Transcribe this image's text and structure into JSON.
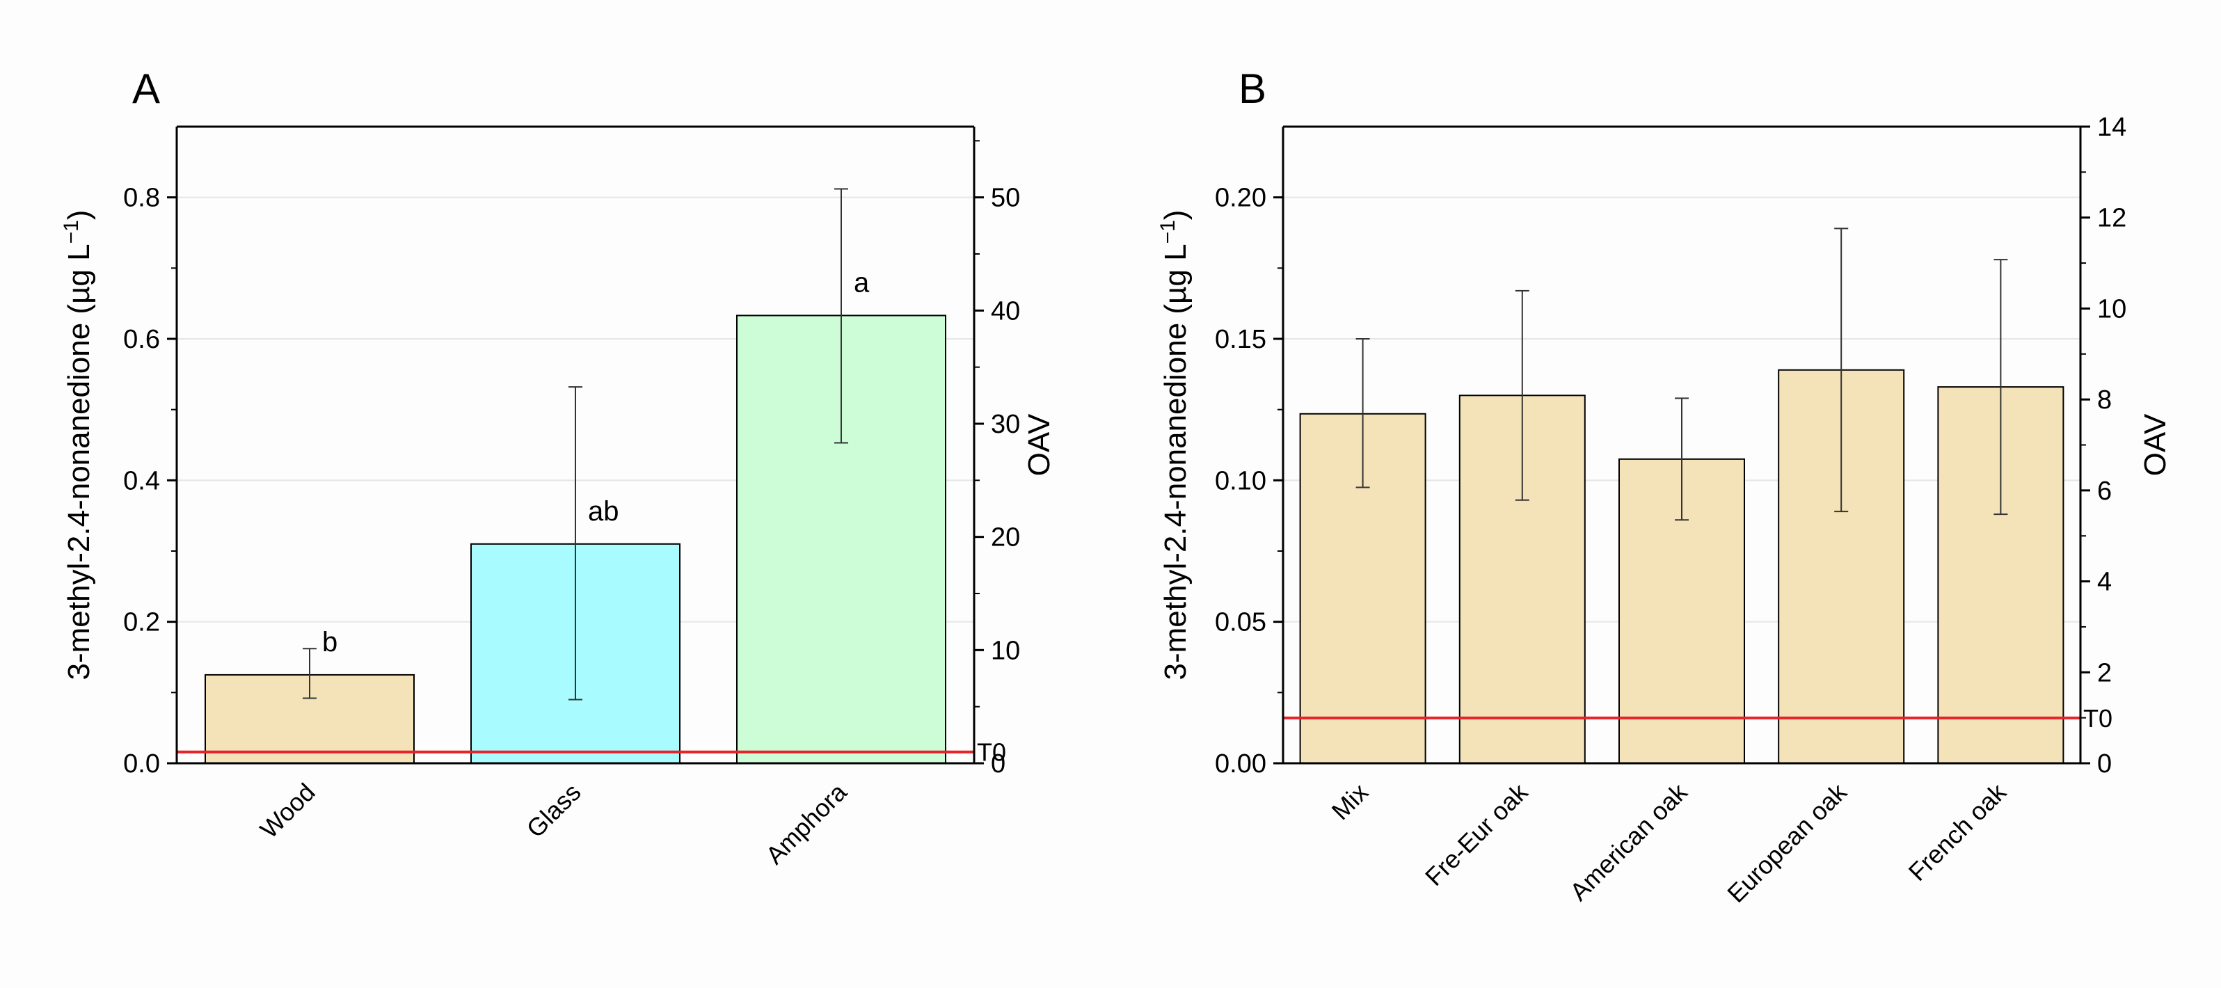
{
  "chart_data": [
    {
      "type": "bar",
      "panel_label": "A",
      "categories": [
        "Wood",
        "Glass",
        "Amphora"
      ],
      "values": [
        0.125,
        0.31,
        0.633
      ],
      "errors": [
        [
          0.092,
          0.162
        ],
        [
          0.09,
          0.532
        ],
        [
          0.453,
          0.812
        ]
      ],
      "significance": [
        "b",
        "ab",
        "a"
      ],
      "bar_colors": [
        "#f4e3b8",
        "#a8fbff",
        "#ccfdd7"
      ],
      "ylabel_main": "3-methyl-2.4-nonanedione (µg L",
      "ylabel_sup": "−1",
      "ylabel_end": ")",
      "ylim": [
        0,
        0.9
      ],
      "yticks": [
        0.0,
        0.2,
        0.4,
        0.6,
        0.8
      ],
      "ytick_labels": [
        "0.0",
        "0.2",
        "0.4",
        "0.6",
        "0.8"
      ],
      "y2label": "OAV",
      "y2lim": [
        0,
        56.25
      ],
      "y2ticks": [
        0,
        10,
        20,
        30,
        40,
        50
      ],
      "y2tick_labels": [
        "0",
        "10",
        "20",
        "30",
        "40",
        "50"
      ],
      "threshold": 0.016,
      "threshold_label": "T0",
      "threshold_color": "#e8222a",
      "grid": true
    },
    {
      "type": "bar",
      "panel_label": "B",
      "categories": [
        "Mix",
        "Fre-Eur oak",
        "American oak",
        "European oak",
        "French oak"
      ],
      "values": [
        0.1235,
        0.13,
        0.1075,
        0.139,
        0.133
      ],
      "errors": [
        [
          0.0975,
          0.15
        ],
        [
          0.093,
          0.167
        ],
        [
          0.086,
          0.129
        ],
        [
          0.089,
          0.189
        ],
        [
          0.088,
          0.178
        ]
      ],
      "significance": [],
      "bar_colors": [
        "#f4e3b8",
        "#f4e3b8",
        "#f4e3b8",
        "#f4e3b8",
        "#f4e3b8"
      ],
      "ylabel_main": "3-methyl-2.4-nonanedione (µg L",
      "ylabel_sup": "−1",
      "ylabel_end": ")",
      "ylim": [
        0,
        0.225
      ],
      "yticks": [
        0.0,
        0.05,
        0.1,
        0.15,
        0.2
      ],
      "ytick_labels": [
        "0.00",
        "0.05",
        "0.10",
        "0.15",
        "0.20"
      ],
      "y2label": "OAV",
      "y2lim": [
        0,
        14
      ],
      "y2ticks": [
        0,
        2,
        4,
        6,
        8,
        10,
        12,
        14
      ],
      "y2tick_labels": [
        "0",
        "2",
        "4",
        "6",
        "8",
        "10",
        "12",
        "14"
      ],
      "threshold": 0.016,
      "threshold_label": "T0",
      "threshold_color": "#e8222a",
      "grid": true
    }
  ]
}
